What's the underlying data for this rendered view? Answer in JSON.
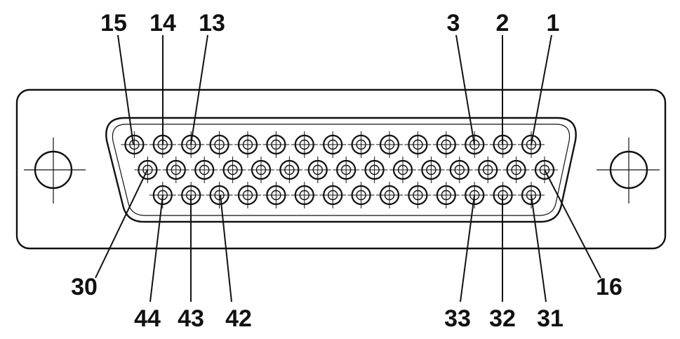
{
  "connector": {
    "row1": {
      "count": 15,
      "numbered": {
        "first": 1,
        "last": 15
      }
    },
    "row2": {
      "count": 15,
      "numbered": {
        "first": 16,
        "last": 30
      }
    },
    "row3": {
      "count": 14,
      "numbered": {
        "first": 31,
        "last": 44
      }
    },
    "mounting_holes": 2
  },
  "labels": {
    "top": [
      "15",
      "14",
      "13",
      "3",
      "2",
      "1"
    ],
    "bottom": [
      "30",
      "44",
      "43",
      "42",
      "33",
      "32",
      "31",
      "16"
    ]
  },
  "colors": {
    "ink": "#111111",
    "background": "#ffffff"
  }
}
